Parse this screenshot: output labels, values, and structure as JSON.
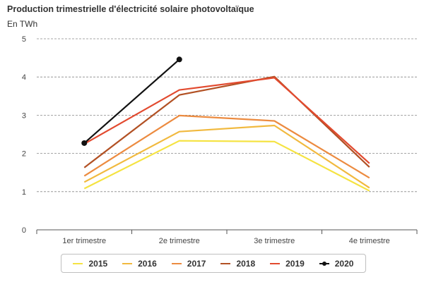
{
  "chart_data": {
    "type": "line",
    "title": "Production trimestrielle d'électricité solaire photovoltaïque",
    "ylabel": "En TWh",
    "xlabel": "",
    "categories": [
      "1er trimestre",
      "2e trimestre",
      "3e trimestre",
      "4e trimestre"
    ],
    "ylim": [
      0,
      5
    ],
    "yticks": [
      "0",
      "1",
      "2",
      "3",
      "4",
      "5"
    ],
    "grid": true,
    "legend_position": "bottom",
    "series": [
      {
        "name": "2015",
        "color": "#f5e342",
        "marker": false,
        "values": [
          1.08,
          2.33,
          2.31,
          1.02
        ]
      },
      {
        "name": "2016",
        "color": "#f1b93e",
        "marker": false,
        "values": [
          1.25,
          2.57,
          2.73,
          1.1
        ]
      },
      {
        "name": "2017",
        "color": "#ec8b40",
        "marker": false,
        "values": [
          1.41,
          2.99,
          2.85,
          1.36
        ]
      },
      {
        "name": "2018",
        "color": "#b25124",
        "marker": false,
        "values": [
          1.63,
          3.53,
          4.01,
          1.64
        ]
      },
      {
        "name": "2019",
        "color": "#e24a2f",
        "marker": false,
        "values": [
          2.25,
          3.66,
          3.98,
          1.74
        ]
      },
      {
        "name": "2020",
        "color": "#111111",
        "marker": true,
        "values": [
          2.27,
          4.46,
          null,
          null
        ]
      }
    ]
  }
}
